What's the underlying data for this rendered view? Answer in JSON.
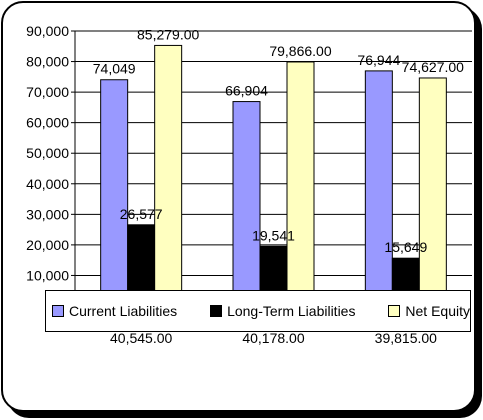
{
  "chart_data": {
    "type": "bar",
    "categories": [
      "",
      "",
      ""
    ],
    "series": [
      {
        "name": "Current Liabilities",
        "color": "#9999ff",
        "values": [
          74049,
          66904,
          76944
        ],
        "labels": [
          "74,049",
          "66,904",
          "76,944"
        ]
      },
      {
        "name": "Long-Term Liabilities",
        "color": "#000000",
        "values": [
          26577,
          19541,
          15649
        ],
        "labels": [
          "26,577",
          "19,541",
          "15,649"
        ]
      },
      {
        "name": "Net Equity",
        "color": "#ffffc0",
        "values": [
          85279,
          79866,
          74627
        ],
        "labels": [
          "85,279.00",
          "79,866.00",
          "74,627.00"
        ]
      }
    ],
    "extra_labels": [
      "40,545.00",
      "40,178.00",
      "39,815.00"
    ],
    "ylim": [
      0,
      90000
    ],
    "yticks": [
      "10,000",
      "20,000",
      "30,000",
      "40,000",
      "50,000",
      "60,000",
      "70,000",
      "80,000",
      "90,000"
    ],
    "grid": true,
    "legend": "bottom",
    "title": "",
    "xlabel": "",
    "ylabel": ""
  }
}
